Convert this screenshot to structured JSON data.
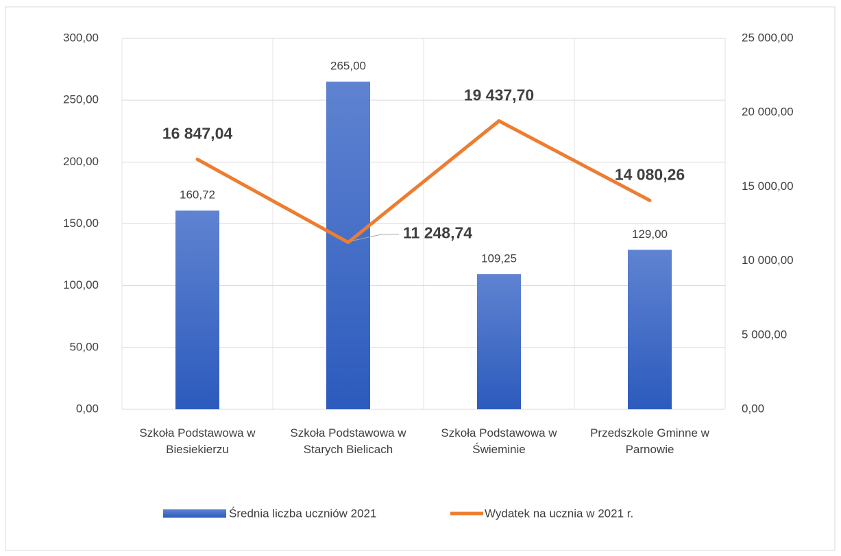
{
  "chart_data": {
    "type": "bar_line",
    "categories": [
      "Szkoła Podstawowa w Biesiekierzu",
      "Szkoła Podstawowa w Starych Bielicach",
      "Szkoła Podstawowa w Świeminie",
      "Przedszkole Gminne w Parnowie"
    ],
    "series": [
      {
        "name": "Średnia liczba uczniów 2021",
        "type": "bar",
        "color": "#4472c4",
        "values": [
          160.72,
          265,
          109.25,
          129
        ],
        "value_labels": [
          "160,72",
          "265,00",
          "109,25",
          "129,00"
        ]
      },
      {
        "name": "Wydatek na ucznia w 2021 r.",
        "type": "line",
        "axis": "y2",
        "color": "#ed7d31",
        "values": [
          16847.04,
          11248.74,
          19437.7,
          14080.26
        ],
        "value_labels": [
          "16 847,04",
          "11 248,74",
          "19 437,70",
          "14 080,26"
        ]
      }
    ],
    "ylim": [
      0,
      300
    ],
    "yticks": [
      {
        "value": 0,
        "label": "0,00"
      },
      {
        "value": 50,
        "label": "50,00"
      },
      {
        "value": 100,
        "label": "100,00"
      },
      {
        "value": 150,
        "label": "150,00"
      },
      {
        "value": 200,
        "label": "200,00"
      },
      {
        "value": 250,
        "label": "250,00"
      },
      {
        "value": 300,
        "label": "300,00"
      }
    ],
    "y2lim": [
      0,
      25000
    ],
    "y2ticks": [
      {
        "value": 0,
        "label": "0,00"
      },
      {
        "value": 5000,
        "label": "5 000,00"
      },
      {
        "value": 10000,
        "label": "10 000,00"
      },
      {
        "value": 15000,
        "label": "15 000,00"
      },
      {
        "value": 20000,
        "label": "20 000,00"
      },
      {
        "value": 25000,
        "label": "25 000,00"
      }
    ],
    "grid": true,
    "legend": "bottom"
  }
}
